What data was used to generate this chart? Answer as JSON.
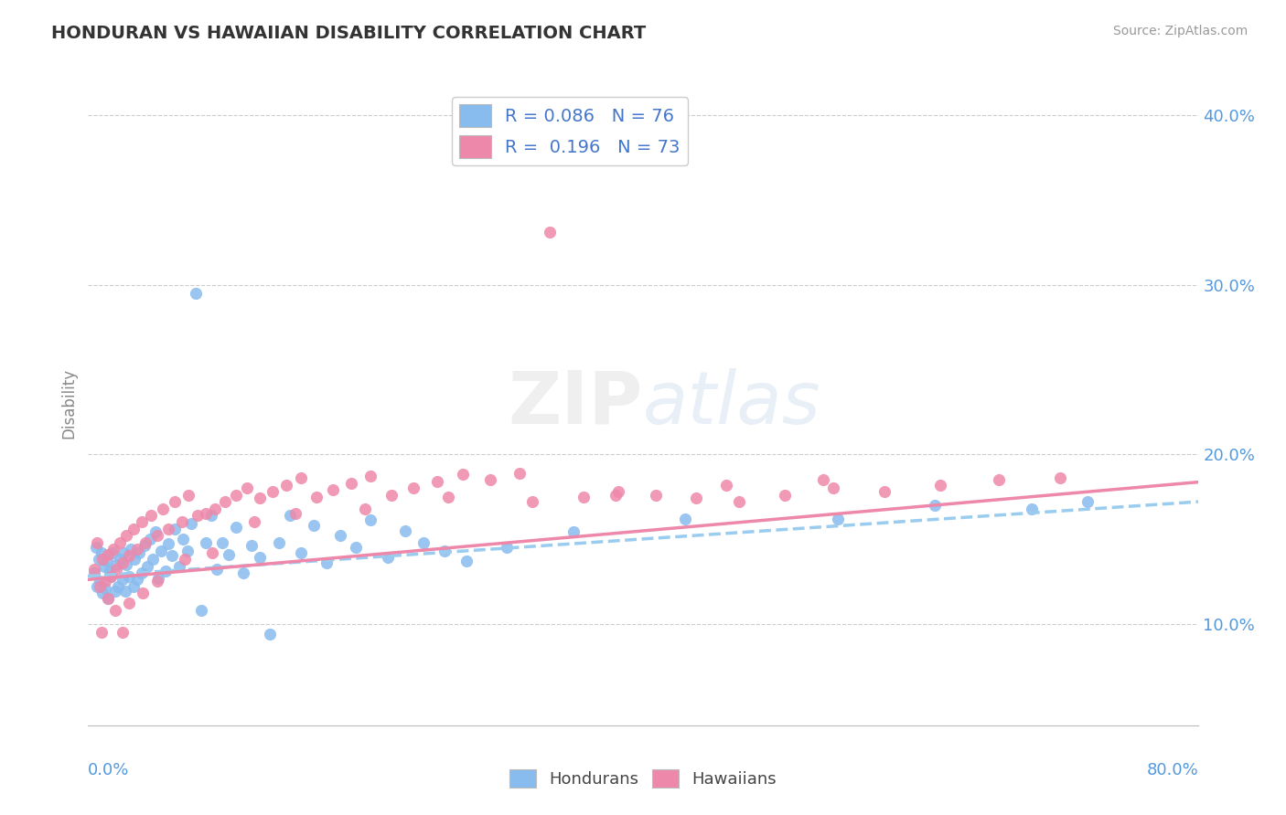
{
  "title": "HONDURAN VS HAWAIIAN DISABILITY CORRELATION CHART",
  "source": "Source: ZipAtlas.com",
  "ylabel": "Disability",
  "xmin": 0.0,
  "xmax": 0.8,
  "ymin": 0.04,
  "ymax": 0.42,
  "ytick_vals": [
    0.1,
    0.2,
    0.3,
    0.4
  ],
  "legend_r1": "R = 0.086   N = 76",
  "legend_r2": "R =  0.196   N = 73",
  "honduran_color": "#88bbee",
  "hawaiian_color": "#ee88aa",
  "watermark_text": "ZIPatlas",
  "hon_intercept": 0.128,
  "hon_slope": 0.055,
  "haw_intercept": 0.126,
  "haw_slope": 0.072,
  "hon_pts_x": [
    0.005,
    0.006,
    0.007,
    0.008,
    0.009,
    0.01,
    0.011,
    0.012,
    0.013,
    0.014,
    0.015,
    0.016,
    0.017,
    0.018,
    0.02,
    0.021,
    0.022,
    0.023,
    0.025,
    0.026,
    0.027,
    0.028,
    0.03,
    0.031,
    0.033,
    0.034,
    0.036,
    0.037,
    0.039,
    0.041,
    0.043,
    0.045,
    0.047,
    0.049,
    0.051,
    0.053,
    0.056,
    0.058,
    0.061,
    0.063,
    0.066,
    0.069,
    0.072,
    0.075,
    0.078,
    0.082,
    0.085,
    0.089,
    0.093,
    0.097,
    0.102,
    0.107,
    0.112,
    0.118,
    0.124,
    0.131,
    0.138,
    0.146,
    0.154,
    0.163,
    0.172,
    0.182,
    0.193,
    0.204,
    0.216,
    0.229,
    0.242,
    0.257,
    0.273,
    0.302,
    0.35,
    0.43,
    0.54,
    0.61,
    0.68,
    0.72
  ],
  "hon_pts_y": [
    0.13,
    0.145,
    0.122,
    0.138,
    0.125,
    0.142,
    0.118,
    0.134,
    0.121,
    0.137,
    0.115,
    0.131,
    0.128,
    0.142,
    0.119,
    0.135,
    0.122,
    0.138,
    0.126,
    0.142,
    0.119,
    0.135,
    0.128,
    0.144,
    0.122,
    0.138,
    0.126,
    0.142,
    0.13,
    0.146,
    0.134,
    0.15,
    0.138,
    0.154,
    0.127,
    0.143,
    0.131,
    0.147,
    0.14,
    0.156,
    0.134,
    0.15,
    0.143,
    0.159,
    0.295,
    0.108,
    0.148,
    0.164,
    0.132,
    0.148,
    0.141,
    0.157,
    0.13,
    0.146,
    0.139,
    0.094,
    0.148,
    0.164,
    0.142,
    0.158,
    0.136,
    0.152,
    0.145,
    0.161,
    0.139,
    0.155,
    0.148,
    0.143,
    0.137,
    0.145,
    0.154,
    0.162,
    0.162,
    0.17,
    0.168,
    0.172
  ],
  "haw_pts_x": [
    0.005,
    0.007,
    0.009,
    0.011,
    0.013,
    0.015,
    0.017,
    0.019,
    0.021,
    0.023,
    0.025,
    0.028,
    0.03,
    0.033,
    0.036,
    0.039,
    0.042,
    0.046,
    0.05,
    0.054,
    0.058,
    0.063,
    0.068,
    0.073,
    0.079,
    0.085,
    0.092,
    0.099,
    0.107,
    0.115,
    0.124,
    0.133,
    0.143,
    0.154,
    0.165,
    0.177,
    0.19,
    0.204,
    0.219,
    0.235,
    0.252,
    0.27,
    0.29,
    0.311,
    0.333,
    0.357,
    0.382,
    0.409,
    0.438,
    0.469,
    0.502,
    0.537,
    0.574,
    0.614,
    0.656,
    0.7,
    0.53,
    0.46,
    0.38,
    0.32,
    0.26,
    0.2,
    0.15,
    0.12,
    0.09,
    0.07,
    0.05,
    0.04,
    0.03,
    0.025,
    0.02,
    0.015,
    0.01
  ],
  "haw_pts_y": [
    0.132,
    0.148,
    0.122,
    0.138,
    0.125,
    0.141,
    0.128,
    0.144,
    0.132,
    0.148,
    0.136,
    0.152,
    0.14,
    0.156,
    0.144,
    0.16,
    0.148,
    0.164,
    0.152,
    0.168,
    0.156,
    0.172,
    0.16,
    0.176,
    0.164,
    0.165,
    0.168,
    0.172,
    0.176,
    0.18,
    0.174,
    0.178,
    0.182,
    0.186,
    0.175,
    0.179,
    0.183,
    0.187,
    0.176,
    0.18,
    0.184,
    0.188,
    0.185,
    0.189,
    0.331,
    0.175,
    0.178,
    0.176,
    0.174,
    0.172,
    0.176,
    0.18,
    0.178,
    0.182,
    0.185,
    0.186,
    0.185,
    0.182,
    0.176,
    0.172,
    0.175,
    0.168,
    0.165,
    0.16,
    0.142,
    0.138,
    0.125,
    0.118,
    0.112,
    0.095,
    0.108,
    0.115,
    0.095
  ]
}
